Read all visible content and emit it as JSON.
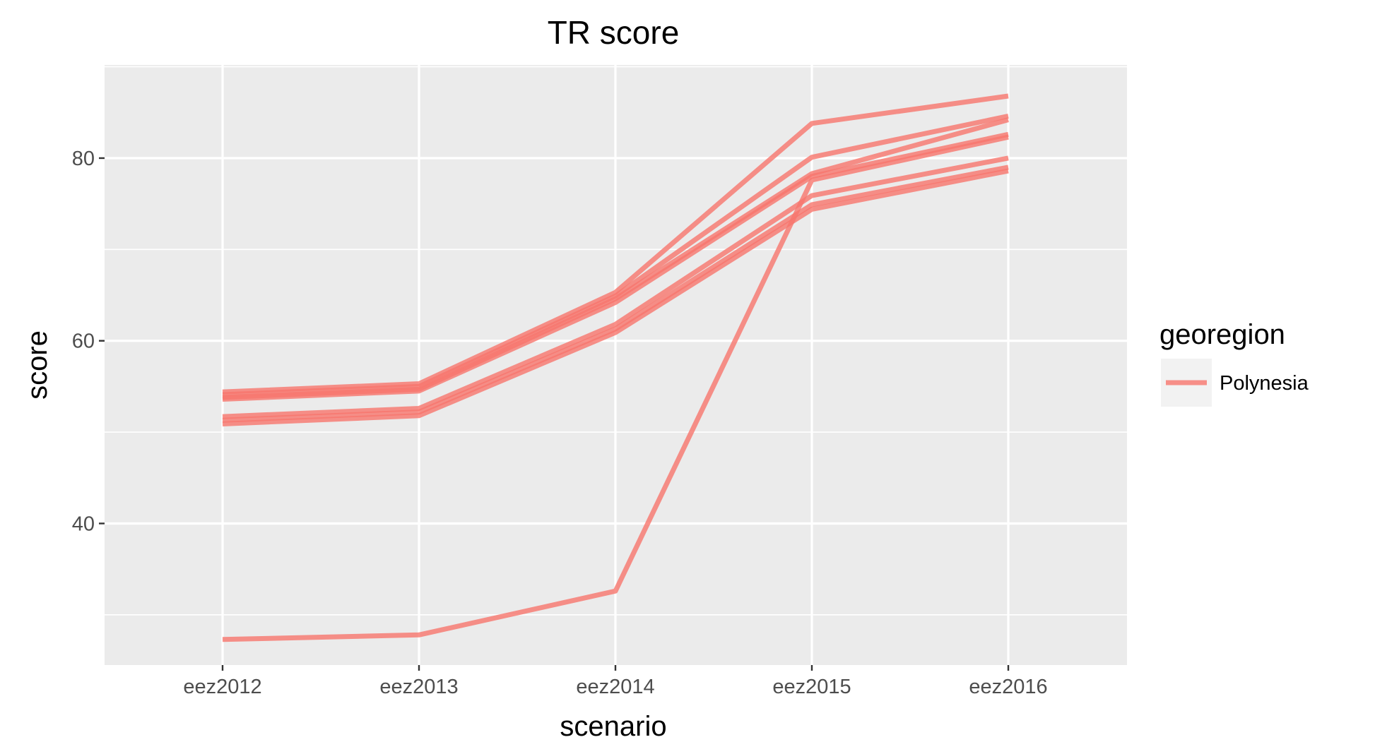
{
  "chart_data": {
    "type": "line",
    "title": "TR score",
    "xlabel": "scenario",
    "ylabel": "score",
    "categories": [
      "eez2012",
      "eez2013",
      "eez2014",
      "eez2015",
      "eez2016"
    ],
    "y_ticks": [
      40,
      60,
      80
    ],
    "ylim": [
      24.5,
      90.2
    ],
    "grid": true,
    "legend": {
      "title": "georegion",
      "entries": [
        "Polynesia"
      ],
      "placement": "right"
    },
    "colors": {
      "series": "#F8766D",
      "panel": "#EBEBEB",
      "grid": "#FFFFFF",
      "tick_text": "#4D4D4D"
    },
    "series": [
      {
        "values": [
          54.4,
          55.3,
          65.3,
          83.8,
          86.8
        ]
      },
      {
        "values": [
          54.1,
          55.0,
          64.9,
          80.1,
          84.6
        ]
      },
      {
        "values": [
          53.8,
          54.7,
          64.6,
          78.3,
          84.2
        ]
      },
      {
        "values": [
          53.6,
          54.5,
          64.2,
          78.0,
          82.6
        ]
      },
      {
        "values": [
          51.7,
          52.6,
          61.8,
          75.9,
          80.0
        ]
      },
      {
        "values": [
          51.3,
          52.2,
          61.3,
          74.9,
          79.0
        ]
      },
      {
        "values": [
          50.9,
          51.8,
          60.9,
          74.4,
          78.6
        ]
      },
      {
        "values": [
          27.3,
          27.8,
          32.6,
          77.6,
          82.3
        ]
      }
    ]
  }
}
